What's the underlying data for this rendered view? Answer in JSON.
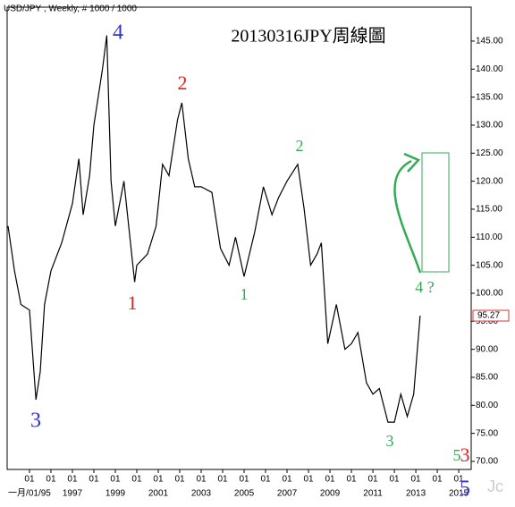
{
  "chart_data": {
    "type": "line",
    "header": "USD/JPY , Weekly, # 1000 / 1000",
    "title": "20130316JPY周線圖",
    "color": "#000000",
    "x": [
      1994.0,
      1994.3,
      1994.6,
      1995.0,
      1995.3,
      1995.5,
      1995.7,
      1996.0,
      1996.5,
      1997.0,
      1997.3,
      1997.5,
      1997.8,
      1998.0,
      1998.4,
      1998.6,
      1998.8,
      1999.0,
      1999.4,
      1999.9,
      2000.0,
      2000.5,
      2000.9,
      2001.2,
      2001.5,
      2001.9,
      2002.1,
      2002.4,
      2002.7,
      2003.0,
      2003.5,
      2003.9,
      2004.3,
      2004.6,
      2005.0,
      2005.5,
      2005.9,
      2006.3,
      2006.6,
      2007.0,
      2007.5,
      2007.8,
      2008.1,
      2008.4,
      2008.6,
      2008.9,
      2009.3,
      2009.7,
      2010.0,
      2010.3,
      2010.7,
      2011.0,
      2011.3,
      2011.7,
      2012.0,
      2012.3,
      2012.6,
      2012.9,
      2013.2
    ],
    "values": [
      112,
      104,
      98,
      97,
      81,
      86,
      98,
      104,
      109,
      116,
      124,
      114,
      121,
      130,
      140,
      146,
      120,
      112,
      120,
      102,
      105,
      107,
      112,
      123,
      121,
      131,
      134,
      124,
      119,
      119,
      118,
      108,
      105,
      110,
      103,
      111,
      119,
      114,
      117,
      120,
      123,
      115,
      105,
      107,
      109,
      91,
      98,
      90,
      91,
      93,
      84,
      82,
      83,
      77,
      77,
      82,
      78,
      82,
      96
    ],
    "last_price": "95.27",
    "xlim": [
      1993.96,
      2015.58
    ],
    "ylim": [
      68.56,
      151.06
    ],
    "xticks": [
      {
        "value": 1995,
        "label": "01"
      },
      {
        "value": 1996,
        "label": "01"
      },
      {
        "value": 1997,
        "label": "01"
      },
      {
        "value": 1998,
        "label": "01"
      },
      {
        "value": 1999,
        "label": "01"
      },
      {
        "value": 2000,
        "label": "01"
      },
      {
        "value": 2001,
        "label": "01"
      },
      {
        "value": 2002,
        "label": "01"
      },
      {
        "value": 2003,
        "label": "01"
      },
      {
        "value": 2004,
        "label": "01"
      },
      {
        "value": 2005,
        "label": "01"
      },
      {
        "value": 2006,
        "label": "01"
      },
      {
        "value": 2007,
        "label": "01"
      },
      {
        "value": 2008,
        "label": "01"
      },
      {
        "value": 2009,
        "label": "01"
      },
      {
        "value": 2010,
        "label": "01"
      },
      {
        "value": 2011,
        "label": "01"
      },
      {
        "value": 2012,
        "label": "01"
      },
      {
        "value": 2013,
        "label": "01"
      },
      {
        "value": 2014,
        "label": "01"
      },
      {
        "value": 2015,
        "label": "01"
      }
    ],
    "xticks_year": [
      {
        "value": 1995,
        "label": "一月/01/95"
      },
      {
        "value": 1997,
        "label": "1997"
      },
      {
        "value": 1999,
        "label": "1999"
      },
      {
        "value": 2001,
        "label": "2001"
      },
      {
        "value": 2003,
        "label": "2003"
      },
      {
        "value": 2005,
        "label": "2005"
      },
      {
        "value": 2007,
        "label": "2007"
      },
      {
        "value": 2009,
        "label": "2009"
      },
      {
        "value": 2011,
        "label": "2011"
      },
      {
        "value": 2013,
        "label": "2013"
      },
      {
        "value": 2015,
        "label": "2015"
      }
    ],
    "yticks": [
      {
        "value": 70,
        "label": "70.00"
      },
      {
        "value": 75,
        "label": "75.00"
      },
      {
        "value": 80,
        "label": "80.00"
      },
      {
        "value": 85,
        "label": "85.00"
      },
      {
        "value": 90,
        "label": "90.00"
      },
      {
        "value": 95,
        "label": "95.00"
      },
      {
        "value": 100,
        "label": "100.00"
      },
      {
        "value": 105,
        "label": "105.00"
      },
      {
        "value": 110,
        "label": "110.00"
      },
      {
        "value": 115,
        "label": "115.00"
      },
      {
        "value": 120,
        "label": "120.00"
      },
      {
        "value": 125,
        "label": "125.00"
      },
      {
        "value": 130,
        "label": "130.00"
      },
      {
        "value": 135,
        "label": "135.00"
      },
      {
        "value": 140,
        "label": "140.00"
      },
      {
        "value": 145,
        "label": "145.00"
      }
    ],
    "annotations": [
      {
        "text": "4",
        "color": "#3333cc"
      },
      {
        "text": "3",
        "color": "#3333cc"
      },
      {
        "text": "2",
        "color": "#dd2222"
      },
      {
        "text": "1",
        "color": "#dd2222"
      },
      {
        "text": "2",
        "color": "#33aa55"
      },
      {
        "text": "1",
        "color": "#33aa55"
      },
      {
        "text": "3",
        "color": "#33aa55"
      },
      {
        "text": "4 ?",
        "color": "#33aa55"
      },
      {
        "text": "5",
        "color": "#33aa55"
      },
      {
        "text": "3",
        "color": "#dd2222"
      },
      {
        "text": "5",
        "color": "#3333cc"
      }
    ]
  }
}
